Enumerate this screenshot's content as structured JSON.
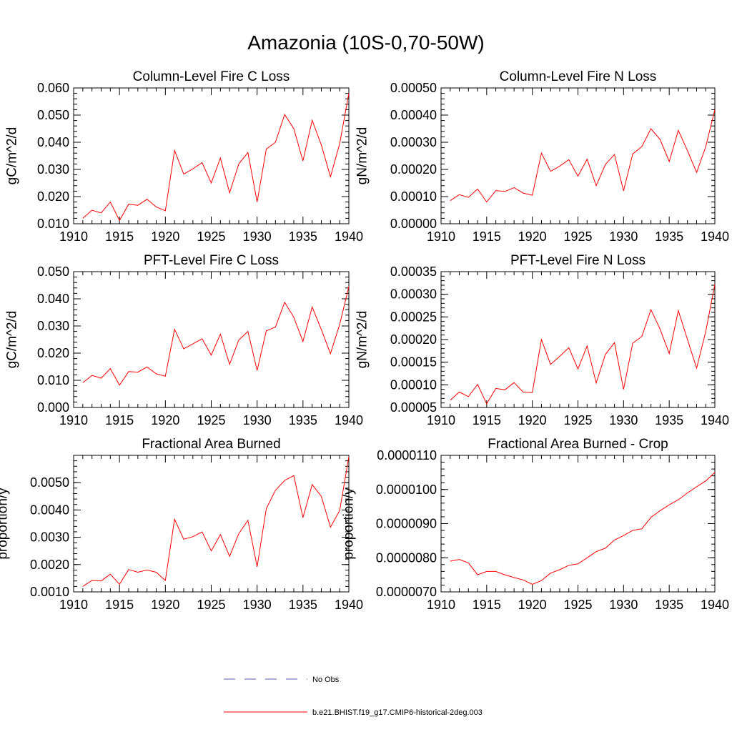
{
  "page": {
    "title": "Amazonia (10S-0,70-50W)"
  },
  "legend": [
    {
      "label": "No Obs",
      "color": "#5a5ab4",
      "dash": "dashed"
    },
    {
      "label": "b.e21.BHIST.f19_g17.CMIP6-historical-2deg.003",
      "color": "#ff0000",
      "dash": "solid"
    }
  ],
  "chart_data": [
    {
      "type": "line",
      "title": "Column-Level Fire C Loss",
      "ylabel": "gC/m^2/d",
      "xlim": [
        1910,
        1940
      ],
      "ylim": [
        0.01,
        0.06
      ],
      "xticks": [
        1910,
        1915,
        1920,
        1925,
        1930,
        1935,
        1940
      ],
      "yticks": [
        0.01,
        0.02,
        0.03,
        0.04,
        0.05,
        0.06
      ],
      "ytick_labels": [
        "0.010",
        "0.020",
        "0.030",
        "0.040",
        "0.050",
        "0.060"
      ],
      "x": [
        1911,
        1912,
        1913,
        1914,
        1915,
        1916,
        1917,
        1918,
        1919,
        1920,
        1921,
        1922,
        1923,
        1924,
        1925,
        1926,
        1927,
        1928,
        1929,
        1930,
        1931,
        1932,
        1933,
        1934,
        1935,
        1936,
        1937,
        1938,
        1939,
        1940
      ],
      "series": [
        {
          "color": "#ff0000",
          "values": [
            0.012,
            0.015,
            0.014,
            0.018,
            0.0112,
            0.0172,
            0.0168,
            0.019,
            0.0162,
            0.0148,
            0.037,
            0.0283,
            0.0302,
            0.0325,
            0.025,
            0.0342,
            0.0214,
            0.032,
            0.0362,
            0.018,
            0.0375,
            0.04,
            0.0502,
            0.045,
            0.0331,
            0.0481,
            0.039,
            0.0273,
            0.0395,
            0.058
          ]
        }
      ]
    },
    {
      "type": "line",
      "title": "Column-Level Fire N Loss",
      "ylabel": "gN/m^2/d",
      "xlim": [
        1910,
        1940
      ],
      "ylim": [
        0.0,
        0.0005
      ],
      "xticks": [
        1910,
        1915,
        1920,
        1925,
        1930,
        1935,
        1940
      ],
      "yticks": [
        0.0,
        0.0001,
        0.0002,
        0.0003,
        0.0004,
        0.0005
      ],
      "ytick_labels": [
        "0.00000",
        "0.00010",
        "0.00020",
        "0.00030",
        "0.00040",
        "0.00050"
      ],
      "x": [
        1911,
        1912,
        1913,
        1914,
        1915,
        1916,
        1917,
        1918,
        1919,
        1920,
        1921,
        1922,
        1923,
        1924,
        1925,
        1926,
        1927,
        1928,
        1929,
        1930,
        1931,
        1932,
        1933,
        1934,
        1935,
        1936,
        1937,
        1938,
        1939,
        1940
      ],
      "series": [
        {
          "color": "#ff0000",
          "values": [
            8.5e-05,
            0.000107,
            9.7e-05,
            0.000128,
            8e-05,
            0.000122,
            0.000119,
            0.000133,
            0.000113,
            0.000105,
            0.00026,
            0.000193,
            0.000212,
            0.000236,
            0.000175,
            0.000238,
            0.00014,
            0.000218,
            0.000255,
            0.000121,
            0.000257,
            0.000284,
            0.00035,
            0.00031,
            0.000229,
            0.000344,
            0.000269,
            0.000189,
            0.000283,
            0.00042
          ]
        }
      ]
    },
    {
      "type": "line",
      "title": "PFT-Level Fire C Loss",
      "ylabel": "gC/m^2/d",
      "xlim": [
        1910,
        1940
      ],
      "ylim": [
        0.0,
        0.05
      ],
      "xticks": [
        1910,
        1915,
        1920,
        1925,
        1930,
        1935,
        1940
      ],
      "yticks": [
        0.0,
        0.01,
        0.02,
        0.03,
        0.04,
        0.05
      ],
      "ytick_labels": [
        "0.000",
        "0.010",
        "0.020",
        "0.030",
        "0.040",
        "0.050"
      ],
      "x": [
        1911,
        1912,
        1913,
        1914,
        1915,
        1916,
        1917,
        1918,
        1919,
        1920,
        1921,
        1922,
        1923,
        1924,
        1925,
        1926,
        1927,
        1928,
        1929,
        1930,
        1931,
        1932,
        1933,
        1934,
        1935,
        1936,
        1937,
        1938,
        1939,
        1940
      ],
      "series": [
        {
          "color": "#ff0000",
          "values": [
            0.0091,
            0.0118,
            0.0108,
            0.0143,
            0.0082,
            0.0132,
            0.013,
            0.0149,
            0.0124,
            0.0115,
            0.0288,
            0.0216,
            0.0234,
            0.0253,
            0.0193,
            0.027,
            0.0159,
            0.0248,
            0.028,
            0.0136,
            0.0282,
            0.0296,
            0.0387,
            0.0332,
            0.0243,
            0.037,
            0.0287,
            0.0198,
            0.0306,
            0.0445
          ]
        }
      ]
    },
    {
      "type": "line",
      "title": "PFT-Level Fire N Loss",
      "ylabel": "gN/m^2/d",
      "xlim": [
        1910,
        1940
      ],
      "ylim": [
        5e-05,
        0.00035
      ],
      "xticks": [
        1910,
        1915,
        1920,
        1925,
        1930,
        1935,
        1940
      ],
      "yticks": [
        5e-05,
        0.0001,
        0.00015,
        0.0002,
        0.00025,
        0.0003,
        0.00035
      ],
      "ytick_labels": [
        "0.00005",
        "0.00010",
        "0.00015",
        "0.00020",
        "0.00025",
        "0.00030",
        "0.00035"
      ],
      "x": [
        1911,
        1912,
        1913,
        1914,
        1915,
        1916,
        1917,
        1918,
        1919,
        1920,
        1921,
        1922,
        1923,
        1924,
        1925,
        1926,
        1927,
        1928,
        1929,
        1930,
        1931,
        1932,
        1933,
        1934,
        1935,
        1936,
        1937,
        1938,
        1939,
        1940
      ],
      "series": [
        {
          "color": "#ff0000",
          "values": [
            6.6e-05,
            8.4e-05,
            7.4e-05,
            0.000101,
            5.8e-05,
            9.2e-05,
            8.9e-05,
            0.000105,
            8.4e-05,
            8.3e-05,
            0.0002,
            0.000145,
            0.000163,
            0.000182,
            0.000135,
            0.000186,
            0.000104,
            0.000167,
            0.000193,
            9e-05,
            0.000192,
            0.000207,
            0.000266,
            0.000223,
            0.000169,
            0.000264,
            0.0002,
            0.000137,
            0.000217,
            0.000322
          ]
        }
      ]
    },
    {
      "type": "line",
      "title": "Fractional Area Burned",
      "ylabel": "proportion/y",
      "xlim": [
        1910,
        1940
      ],
      "ylim": [
        0.001,
        0.006
      ],
      "xticks": [
        1910,
        1915,
        1920,
        1925,
        1930,
        1935,
        1940
      ],
      "yticks": [
        0.001,
        0.002,
        0.003,
        0.004,
        0.005
      ],
      "ytick_labels": [
        "0.0010",
        "0.0020",
        "0.0030",
        "0.0040",
        "0.0050"
      ],
      "x": [
        1911,
        1912,
        1913,
        1914,
        1915,
        1916,
        1917,
        1918,
        1919,
        1920,
        1921,
        1922,
        1923,
        1924,
        1925,
        1926,
        1927,
        1928,
        1929,
        1930,
        1931,
        1932,
        1933,
        1934,
        1935,
        1936,
        1937,
        1938,
        1939,
        1940
      ],
      "series": [
        {
          "color": "#ff0000",
          "values": [
            0.0012,
            0.00142,
            0.0014,
            0.00165,
            0.00128,
            0.00182,
            0.00172,
            0.0018,
            0.00172,
            0.00142,
            0.00366,
            0.00293,
            0.00302,
            0.0032,
            0.0025,
            0.0031,
            0.0023,
            0.00313,
            0.00362,
            0.00192,
            0.00405,
            0.00472,
            0.00508,
            0.00526,
            0.00372,
            0.00493,
            0.0045,
            0.00337,
            0.00398,
            0.00595
          ]
        }
      ]
    },
    {
      "type": "line",
      "title": "Fractional Area Burned - Crop",
      "ylabel": "proportion/y",
      "xlim": [
        1910,
        1940
      ],
      "ylim": [
        7e-06,
        1.1e-05
      ],
      "xticks": [
        1910,
        1915,
        1920,
        1925,
        1930,
        1935,
        1940
      ],
      "yticks": [
        7e-06,
        8e-06,
        9e-06,
        1e-05,
        1.1e-05
      ],
      "ytick_labels": [
        "0.0000070",
        "0.0000080",
        "0.0000090",
        "0.0000100",
        "0.0000110"
      ],
      "x": [
        1911,
        1912,
        1913,
        1914,
        1915,
        1916,
        1917,
        1918,
        1919,
        1920,
        1921,
        1922,
        1923,
        1924,
        1925,
        1926,
        1927,
        1928,
        1929,
        1930,
        1931,
        1932,
        1933,
        1934,
        1935,
        1936,
        1937,
        1938,
        1939,
        1940
      ],
      "series": [
        {
          "color": "#ff0000",
          "values": [
            7.9e-06,
            7.95e-06,
            7.85e-06,
            7.5e-06,
            7.6e-06,
            7.6e-06,
            7.5e-06,
            7.42e-06,
            7.35e-06,
            7.22e-06,
            7.33e-06,
            7.55e-06,
            7.65e-06,
            7.78e-06,
            7.82e-06,
            8e-06,
            8.18e-06,
            8.28e-06,
            8.52e-06,
            8.65e-06,
            8.8e-06,
            8.85e-06,
            9.18e-06,
            9.38e-06,
            9.55e-06,
            9.7e-06,
            9.9e-06,
            1.008e-05,
            1.025e-05,
            1.05e-05
          ]
        }
      ]
    }
  ]
}
